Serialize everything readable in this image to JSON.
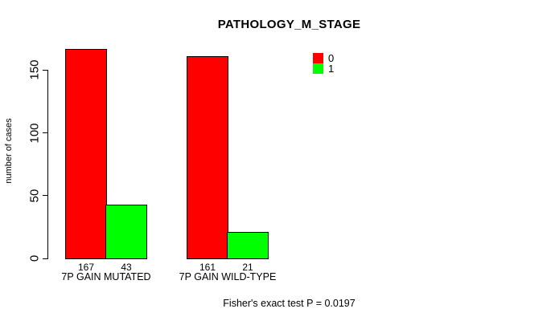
{
  "chart_data": {
    "type": "bar",
    "title": "PATHOLOGY_M_STAGE",
    "ylabel": "number of cases",
    "xlabel": "",
    "categories": [
      "7P GAIN MUTATED",
      "7P GAIN WILD-TYPE"
    ],
    "series": [
      {
        "name": "0",
        "color": "#ff0000",
        "values": [
          167,
          161
        ]
      },
      {
        "name": "1",
        "color": "#00ff00",
        "values": [
          43,
          21
        ]
      }
    ],
    "bar_value_labels": [
      [
        "167",
        "161"
      ],
      [
        "43",
        "21"
      ]
    ],
    "yticks": [
      0,
      50,
      100,
      150
    ],
    "ylim": [
      0,
      175
    ],
    "grid": false,
    "legend_position": "top-right",
    "bar_border_color": "#000000",
    "axis_color": "#000000",
    "background_color": "#ffffff",
    "annotation": "Fisher's exact test P = 0.0197"
  }
}
